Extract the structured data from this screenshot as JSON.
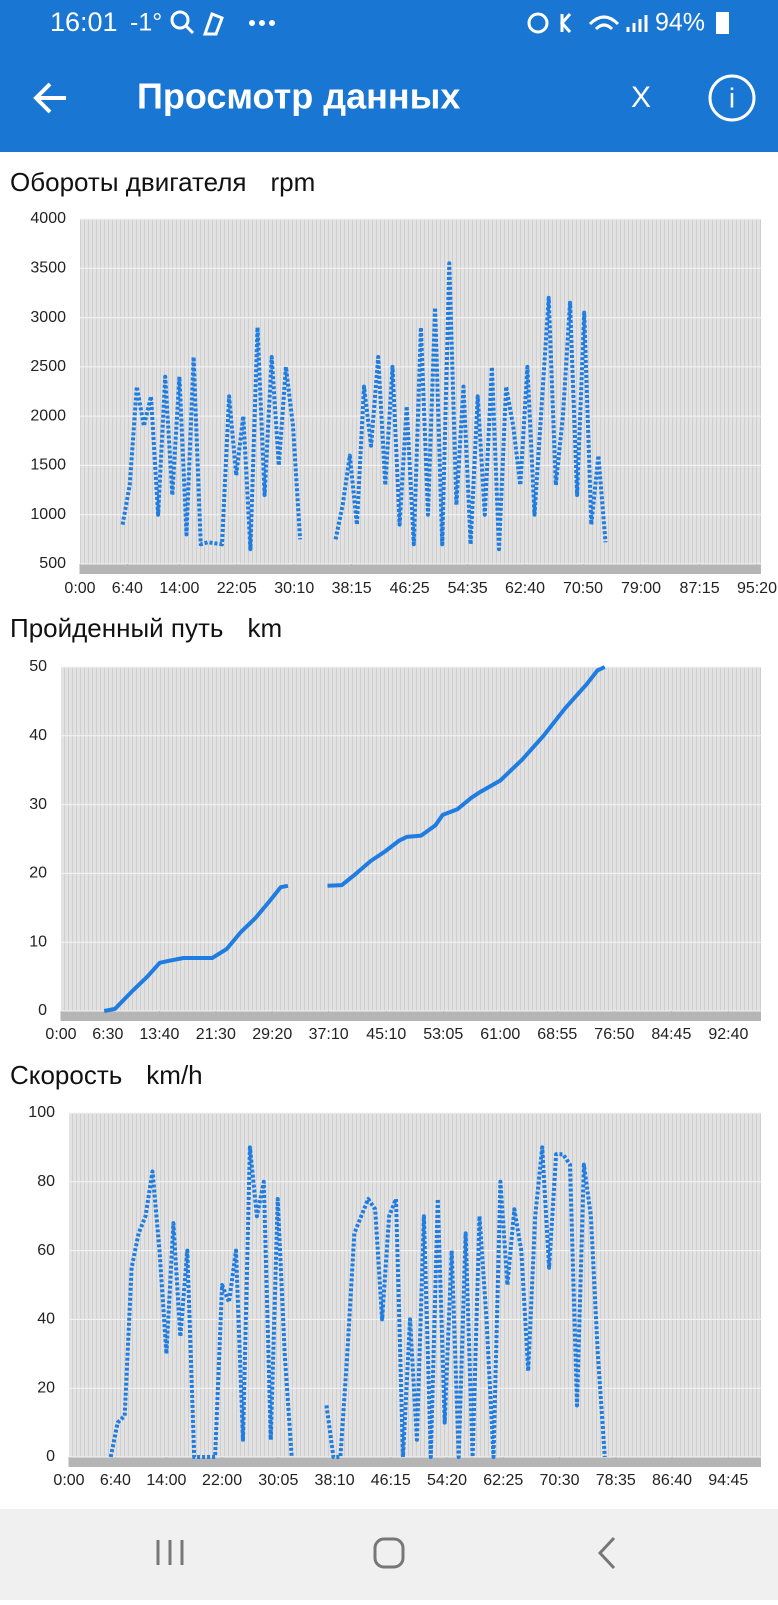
{
  "status_bar": {
    "time": "16:01",
    "temperature": "-1°",
    "battery": "94%"
  },
  "app_bar": {
    "title": "Просмотр данных",
    "close": "X",
    "info": "i"
  },
  "chart_data": [
    {
      "type": "line",
      "title": "Обороты двигателя",
      "unit": "rpm",
      "color": "#1f7ce0",
      "line_style": "dotted",
      "grid": true,
      "x": [
        6,
        7,
        8,
        9,
        10,
        11,
        12,
        13,
        14,
        15,
        16,
        17,
        18,
        19,
        20,
        21,
        22,
        23,
        24,
        25,
        26,
        27,
        28,
        29,
        30,
        31,
        33,
        36,
        37,
        38,
        39,
        40,
        41,
        42,
        43,
        44,
        45,
        46,
        47,
        48,
        49,
        50,
        51,
        52,
        53,
        54,
        55,
        56,
        57,
        58,
        59,
        60,
        61,
        62,
        63,
        64,
        65,
        66,
        67,
        68,
        69,
        70,
        71,
        72,
        73,
        74
      ],
      "values": [
        900,
        1300,
        2300,
        1900,
        2200,
        1000,
        2400,
        1200,
        2400,
        800,
        2600,
        700,
        720,
        710,
        700,
        2200,
        1400,
        2000,
        650,
        2900,
        1200,
        2600,
        1500,
        2500,
        1900,
        750,
        null,
        750,
        1100,
        1600,
        900,
        2300,
        1700,
        2600,
        1300,
        2500,
        900,
        2100,
        700,
        2900,
        1000,
        3100,
        700,
        3550,
        1100,
        2300,
        700,
        2200,
        1000,
        2500,
        650,
        2300,
        1900,
        1300,
        2500,
        1000,
        2100,
        3200,
        1300,
        2000,
        3150,
        1200,
        3050,
        900,
        1600,
        720
      ],
      "xlim": [
        0,
        95.9
      ],
      "xticks": [
        {
          "value": 0,
          "label": "0:00"
        },
        {
          "value": 6.667,
          "label": "6:40"
        },
        {
          "value": 14,
          "label": "14:00"
        },
        {
          "value": 22.083,
          "label": "22:05"
        },
        {
          "value": 30.167,
          "label": "30:10"
        },
        {
          "value": 38.25,
          "label": "38:15"
        },
        {
          "value": 46.417,
          "label": "46:25"
        },
        {
          "value": 54.583,
          "label": "54:35"
        },
        {
          "value": 62.667,
          "label": "62:40"
        },
        {
          "value": 70.833,
          "label": "70:50"
        },
        {
          "value": 79,
          "label": "79:00"
        },
        {
          "value": 87.25,
          "label": "87:15"
        },
        {
          "value": 95.333,
          "label": "95:20"
        }
      ],
      "ylim": [
        500,
        4000
      ],
      "yticks": [
        500,
        1000,
        1500,
        2000,
        2500,
        3000,
        3500,
        4000
      ]
    },
    {
      "type": "line",
      "title": "Пройденный путь",
      "unit": "km",
      "color": "#1f7ce0",
      "line_style": "solid",
      "grid": true,
      "x": [
        6,
        7.5,
        10,
        12,
        13.7,
        15,
        17,
        19,
        21,
        23,
        25,
        27,
        29,
        30.5,
        31.5,
        34,
        37,
        39,
        41,
        43,
        45,
        47,
        48,
        50,
        52,
        53,
        55,
        57,
        58,
        61,
        64,
        67,
        70,
        73,
        74.5,
        75.5
      ],
      "values": [
        0,
        0.3,
        3,
        5,
        7,
        7.3,
        7.7,
        7.7,
        7.7,
        9,
        11.5,
        13.5,
        16,
        18,
        18.2,
        null,
        18.2,
        18.3,
        20,
        21.8,
        23.2,
        24.8,
        25.3,
        25.5,
        27,
        28.5,
        29.3,
        31,
        31.7,
        33.5,
        36.5,
        40,
        44,
        47.5,
        49.5,
        50
      ],
      "xlim": [
        0,
        97.2
      ],
      "xticks": [
        {
          "value": 0,
          "label": "0:00"
        },
        {
          "value": 6.5,
          "label": "6:30"
        },
        {
          "value": 13.667,
          "label": "13:40"
        },
        {
          "value": 21.5,
          "label": "21:30"
        },
        {
          "value": 29.333,
          "label": "29:20"
        },
        {
          "value": 37.167,
          "label": "37:10"
        },
        {
          "value": 45.167,
          "label": "45:10"
        },
        {
          "value": 53.083,
          "label": "53:05"
        },
        {
          "value": 61,
          "label": "61:00"
        },
        {
          "value": 68.917,
          "label": "68:55"
        },
        {
          "value": 76.833,
          "label": "76:50"
        },
        {
          "value": 84.75,
          "label": "84:45"
        },
        {
          "value": 92.667,
          "label": "92:40"
        }
      ],
      "ylim": [
        0,
        50
      ],
      "yticks": [
        0,
        10,
        20,
        30,
        40,
        50
      ]
    },
    {
      "type": "line",
      "title": "Скорость",
      "unit": "km/h",
      "color": "#1f7ce0",
      "line_style": "dotted",
      "grid": true,
      "x": [
        6,
        7,
        8,
        9,
        10,
        11,
        12,
        13,
        14,
        15,
        16,
        17,
        18,
        19,
        20,
        21,
        22,
        23,
        24,
        25,
        26,
        27,
        28,
        29,
        30,
        31,
        32,
        34,
        37,
        38,
        39,
        40,
        41,
        42,
        43,
        44,
        45,
        46,
        47,
        48,
        49,
        50,
        51,
        52,
        53,
        54,
        55,
        56,
        57,
        58,
        59,
        60,
        61,
        62,
        63,
        64,
        65,
        66,
        67,
        68,
        69,
        70,
        71,
        72,
        73,
        74,
        75,
        76,
        77
      ],
      "values": [
        0,
        10,
        12,
        55,
        65,
        70,
        83,
        60,
        30,
        68,
        35,
        60,
        0,
        0,
        0,
        0,
        50,
        45,
        60,
        5,
        90,
        70,
        80,
        5,
        75,
        30,
        0,
        null,
        15,
        0,
        0,
        30,
        65,
        70,
        75,
        72,
        40,
        70,
        75,
        0,
        40,
        5,
        70,
        0,
        75,
        10,
        60,
        0,
        65,
        0,
        70,
        40,
        0,
        80,
        50,
        72,
        60,
        25,
        70,
        90,
        55,
        88,
        88,
        85,
        15,
        85,
        70,
        30,
        0
      ],
      "xlim": [
        0,
        99.45
      ],
      "xticks": [
        {
          "value": 0,
          "label": "0:00"
        },
        {
          "value": 6.667,
          "label": "6:40"
        },
        {
          "value": 14,
          "label": "14:00"
        },
        {
          "value": 22,
          "label": "22:00"
        },
        {
          "value": 30.083,
          "label": "30:05"
        },
        {
          "value": 38.167,
          "label": "38:10"
        },
        {
          "value": 46.25,
          "label": "46:15"
        },
        {
          "value": 54.333,
          "label": "54:20"
        },
        {
          "value": 62.417,
          "label": "62:25"
        },
        {
          "value": 70.5,
          "label": "70:30"
        },
        {
          "value": 78.583,
          "label": "78:35"
        },
        {
          "value": 86.667,
          "label": "86:40"
        },
        {
          "value": 94.75,
          "label": "94:45"
        }
      ],
      "ylim": [
        0,
        100
      ],
      "yticks": [
        0,
        20,
        40,
        60,
        80,
        100
      ]
    }
  ]
}
